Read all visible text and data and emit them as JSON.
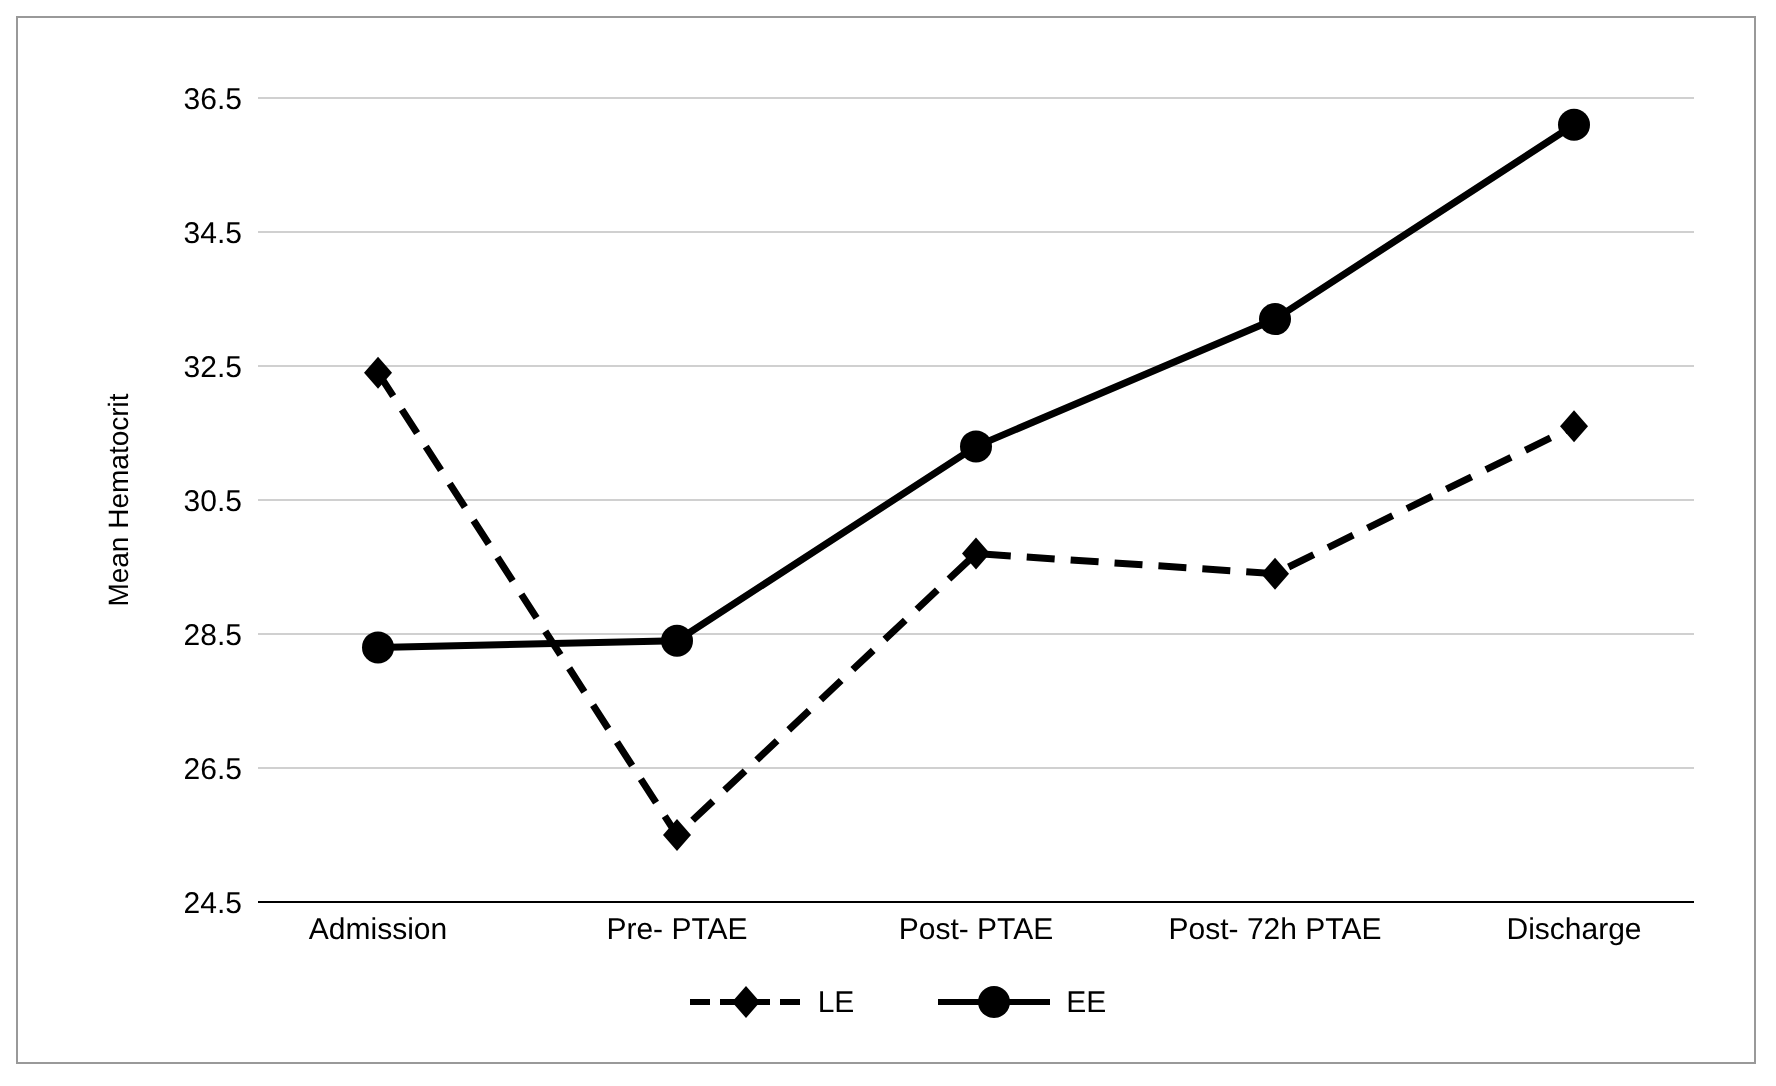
{
  "chart_data": {
    "type": "line",
    "ylabel": "Mean Hematocrit",
    "categories": [
      "Admission",
      "Pre- PTAE",
      "Post- PTAE",
      "Post- 72h PTAE",
      "Discharge"
    ],
    "series": [
      {
        "name": "LE",
        "color": "#000000",
        "values": [
          32.4,
          25.5,
          29.7,
          29.4,
          31.6
        ],
        "marker": "diamond",
        "line_style": "dashed"
      },
      {
        "name": "EE",
        "color": "#000000",
        "values": [
          28.3,
          28.4,
          31.3,
          33.2,
          36.1
        ],
        "marker": "circle",
        "line_style": "solid"
      }
    ],
    "ylim": [
      24.5,
      36.5
    ],
    "yticks": [
      24.5,
      26.5,
      28.5,
      30.5,
      32.5,
      34.5,
      36.5
    ],
    "grid": "y",
    "legend": "bottom"
  }
}
